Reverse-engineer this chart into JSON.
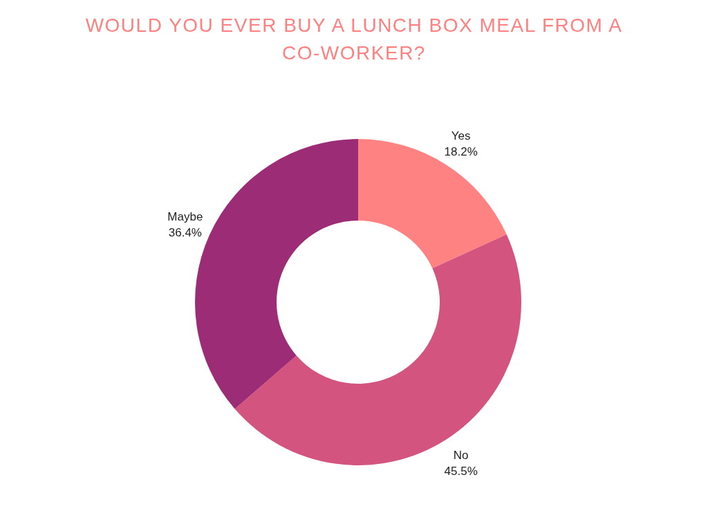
{
  "chart_data": {
    "type": "donut",
    "title": "WOULD YOU EVER BUY A LUNCH BOX MEAL FROM A CO-WORKER?",
    "categories": [
      "Yes",
      "No",
      "Maybe"
    ],
    "values": [
      18.2,
      45.5,
      36.4
    ],
    "colors": [
      "#ff8282",
      "#d3557f",
      "#9d2c77"
    ],
    "value_labels": [
      "18.2%",
      "45.5%",
      "36.4%"
    ]
  }
}
